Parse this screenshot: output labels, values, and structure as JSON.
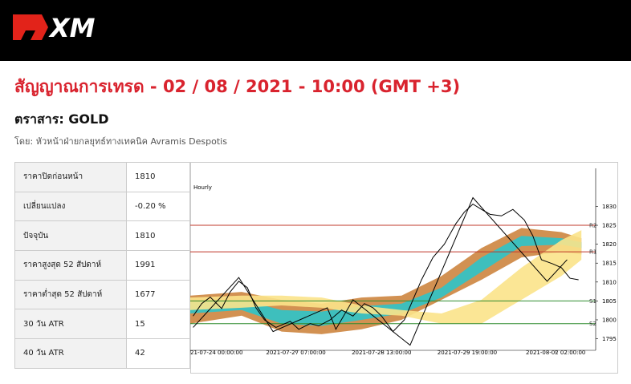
{
  "header": {
    "logo": "XM",
    "title": "สัญญาณการเทรด - 02 / 08 / 2021 - 10:00 (GMT +3)",
    "instrument": "ตราสาร: GOLD",
    "author": "โดย: หัวหน้าฝ่ายกลยุทธ์ทางเทคนิค Avramis Despotis"
  },
  "table": {
    "rows": [
      [
        "ราคาปิดก่อนหน้า",
        "1810"
      ],
      [
        "เปลี่ยนแปลง",
        "-0.20 %"
      ],
      [
        "ปัจจุบัน",
        "1810"
      ],
      [
        "ราคาสูงสุด 52 สัปดาห์",
        "1991"
      ],
      [
        "ราคาต่ำสุด 52 สัปดาห์",
        "1677"
      ],
      [
        "30 วัน ATR",
        "15"
      ],
      [
        "40 วัน ATR",
        "42"
      ]
    ]
  },
  "chart_data": {
    "type": "line",
    "timeframe": "Hourly",
    "xlim": [
      0,
      142
    ],
    "xticks": [
      {
        "value": 0,
        "label": "21-07-24 00:00:00"
      },
      {
        "value": 37,
        "label": "2021-07-27 07:00:00"
      },
      {
        "value": 67,
        "label": "2021-07-28 13:00:00"
      },
      {
        "value": 97,
        "label": "2021-07-29 19:00:00"
      },
      {
        "value": 128,
        "label": "2021-08-02 02:00:00"
      }
    ],
    "ylim": [
      1793,
      1839
    ],
    "yticks": [
      1795,
      1800,
      1805,
      1810,
      1815,
      1820,
      1825,
      1830
    ],
    "levels": [
      {
        "label": "R2",
        "value": 1825,
        "color": "#c0392b"
      },
      {
        "label": "R1",
        "value": 1818,
        "color": "#c0392b"
      },
      {
        "label": "S1",
        "value": 1805,
        "color": "#2e8b2e"
      },
      {
        "label": "S2",
        "value": 1799,
        "color": "#2e8b2e"
      }
    ],
    "band_x": [
      0,
      18,
      32,
      46,
      60,
      74,
      88,
      102,
      116,
      130,
      137
    ],
    "bands": [
      {
        "color": "#cd853f",
        "upper": [
          1806.4,
          1807.4,
          1805.3,
          1804.3,
          1805.9,
          1806.4,
          1811.6,
          1819.0,
          1824.3,
          1823.2,
          1821.6
        ],
        "lower": [
          1799.0,
          1801.1,
          1796.9,
          1796.2,
          1797.5,
          1800.0,
          1805.3,
          1810.6,
          1816.5,
          1818.0,
          1817.3
        ]
      },
      {
        "color": "#2ec4c9",
        "upper": [
          1804.7,
          1805.3,
          1802.6,
          1802.2,
          1803.6,
          1804.3,
          1808.5,
          1816.5,
          1822.2,
          1821.6,
          1820.5
        ],
        "lower": [
          1801.7,
          1802.6,
          1799.0,
          1798.4,
          1800.0,
          1801.7,
          1805.9,
          1812.7,
          1819.5,
          1819.9,
          1819.0
        ]
      },
      {
        "color": "#fbe38a",
        "upper": [
          1805.9,
          1806.4,
          1806.4,
          1805.9,
          1803.8,
          1802.6,
          1801.7,
          1805.3,
          1813.8,
          1821.1,
          1823.7
        ],
        "lower": [
          1802.6,
          1803.2,
          1803.8,
          1803.2,
          1801.7,
          1801.1,
          1799.0,
          1799.0,
          1805.3,
          1811.6,
          1815.9
        ]
      }
    ],
    "series": [
      {
        "color": "#000000",
        "x": [
          1,
          4,
          7,
          11,
          14,
          17,
          20,
          23,
          26,
          30,
          35,
          38,
          42,
          45,
          49,
          53,
          57,
          61,
          64,
          67,
          71,
          75,
          78,
          81,
          85,
          89,
          93,
          96,
          99,
          102,
          105,
          109,
          113,
          117,
          120,
          123,
          127,
          130,
          133,
          136
        ],
        "values": [
          1801,
          1804.3,
          1806,
          1803,
          1807.4,
          1810.2,
          1808.5,
          1803.2,
          1800,
          1798,
          1799.6,
          1797.5,
          1799,
          1798.4,
          1800,
          1802.6,
          1801,
          1804.3,
          1803.2,
          1801,
          1796.9,
          1800,
          1805.3,
          1810.6,
          1816.5,
          1820,
          1825.4,
          1828.5,
          1830.6,
          1829.2,
          1827.9,
          1827.5,
          1829.2,
          1826.4,
          1822.2,
          1815.9,
          1814.8,
          1813.8,
          1811,
          1810.6
        ]
      },
      {
        "color": "#000000",
        "x": [
          1,
          17,
          29,
          48,
          51,
          57,
          77,
          99,
          125,
          132
        ],
        "values": [
          1798,
          1811.2,
          1796.9,
          1803.2,
          1797.5,
          1805.3,
          1793.3,
          1832.3,
          1810.2,
          1815.9
        ]
      }
    ]
  }
}
